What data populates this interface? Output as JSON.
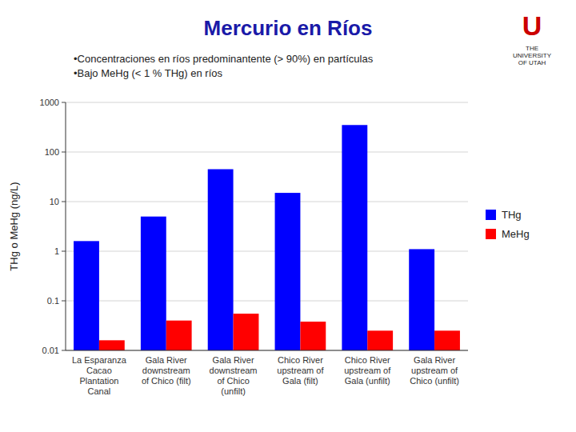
{
  "chart_data": {
    "type": "bar",
    "title": "Mercurio en Ríos",
    "subtitle": [
      "•Concentraciones en ríos predominantente (> 90%) en partículas",
      "•Bajo MeHg (< 1 % THg) en ríos"
    ],
    "y_label": "THg o MeHg (ng/L)",
    "annotations": [
      "U",
      "THE",
      "UNIVERSITY",
      "OF UTAH"
    ],
    "categories": [
      "La Esparanza\nCacao\nPlantation\nCanal",
      "Gala River\ndownstream\nof Chico (filt)",
      "Gala River\ndownstream\nof Chico\n(unfilt)",
      "Chico River\nupstream of\nGala (filt)",
      "Chico River\nupstream of\nGala (unfilt)",
      "Gala River\nupstream of\nChico (unfilt)"
    ],
    "series": [
      {
        "name": "THg",
        "color": "#0000FF",
        "values": [
          1.6,
          5.0,
          45.0,
          15.0,
          350.0,
          1.1
        ]
      },
      {
        "name": "MeHg",
        "color": "#FF0000",
        "values": [
          0.016,
          0.04,
          0.055,
          0.038,
          0.025,
          0.025
        ]
      }
    ],
    "log": "y",
    "ylim": [
      0.01,
      1000
    ],
    "yticks": [
      0.01,
      0.1,
      1,
      10,
      100,
      1000
    ],
    "grid": true,
    "legend": "right"
  }
}
